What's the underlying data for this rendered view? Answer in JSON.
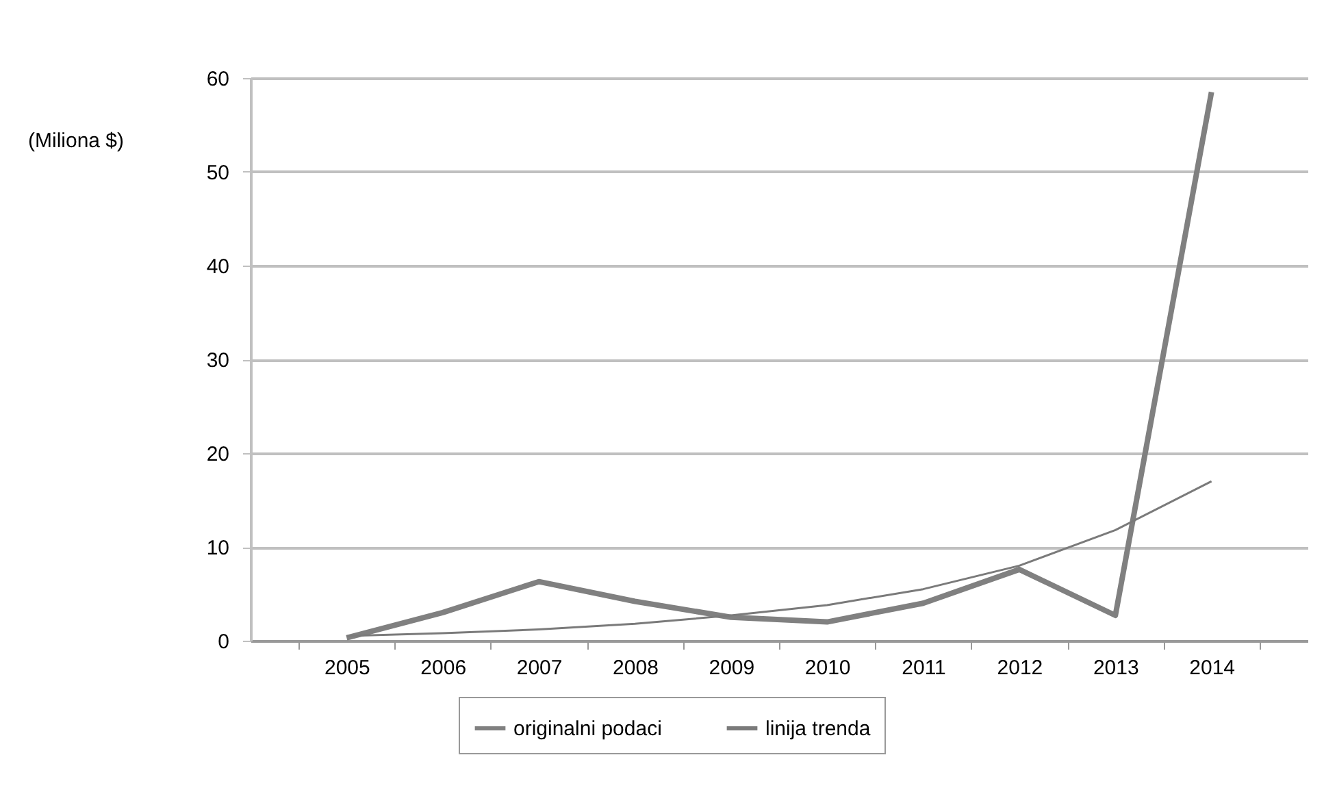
{
  "chart_data": {
    "type": "line",
    "ylabel": "(Miliona $)",
    "categories": [
      "2005",
      "2006",
      "2007",
      "2008",
      "2009",
      "2010",
      "2011",
      "2012",
      "2013",
      "2014"
    ],
    "series": [
      {
        "name": "originalni podaci",
        "color": "#808080",
        "values": [
          0.3,
          3,
          6.3,
          4.2,
          2.5,
          2,
          4,
          7.6,
          2.7,
          58.5
        ]
      },
      {
        "name": "linija trenda",
        "color": "#7a7a7a",
        "values": [
          0.5,
          0.8,
          1.2,
          1.8,
          2.7,
          3.8,
          5.5,
          8,
          11.8,
          17
        ]
      }
    ],
    "ylim": [
      0,
      60
    ],
    "yticks": [
      0,
      10,
      20,
      30,
      40,
      50,
      60
    ],
    "grid": "y",
    "legend": "bottom",
    "marker": "none"
  }
}
